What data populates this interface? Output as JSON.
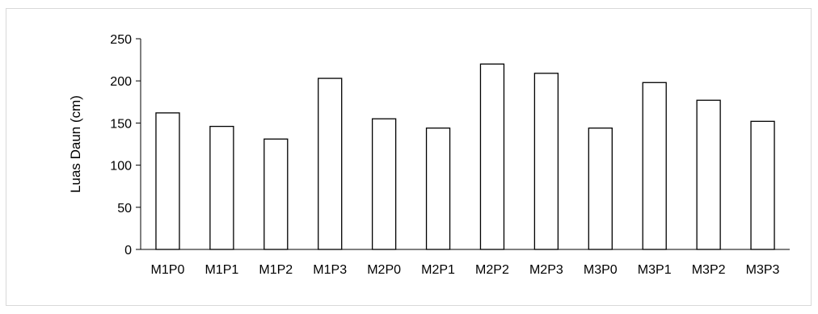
{
  "chart_data": {
    "type": "bar",
    "title": "",
    "xlabel": "",
    "ylabel": "Luas Daun (cm)",
    "ylim": [
      0,
      250
    ],
    "yticks": [
      0,
      50,
      100,
      150,
      200,
      250
    ],
    "grid": false,
    "legend": "none",
    "categories": [
      "M1P0",
      "M1P1",
      "M1P2",
      "M1P3",
      "M2P0",
      "M2P1",
      "M2P2",
      "M2P3",
      "M3P0",
      "M3P1",
      "M3P2",
      "M3P3"
    ],
    "series": [
      {
        "values": [
          162,
          146,
          131,
          203,
          155,
          144,
          220,
          209,
          144,
          198,
          177,
          152
        ],
        "fill": "#ffffff",
        "stroke": "#000000"
      }
    ]
  }
}
